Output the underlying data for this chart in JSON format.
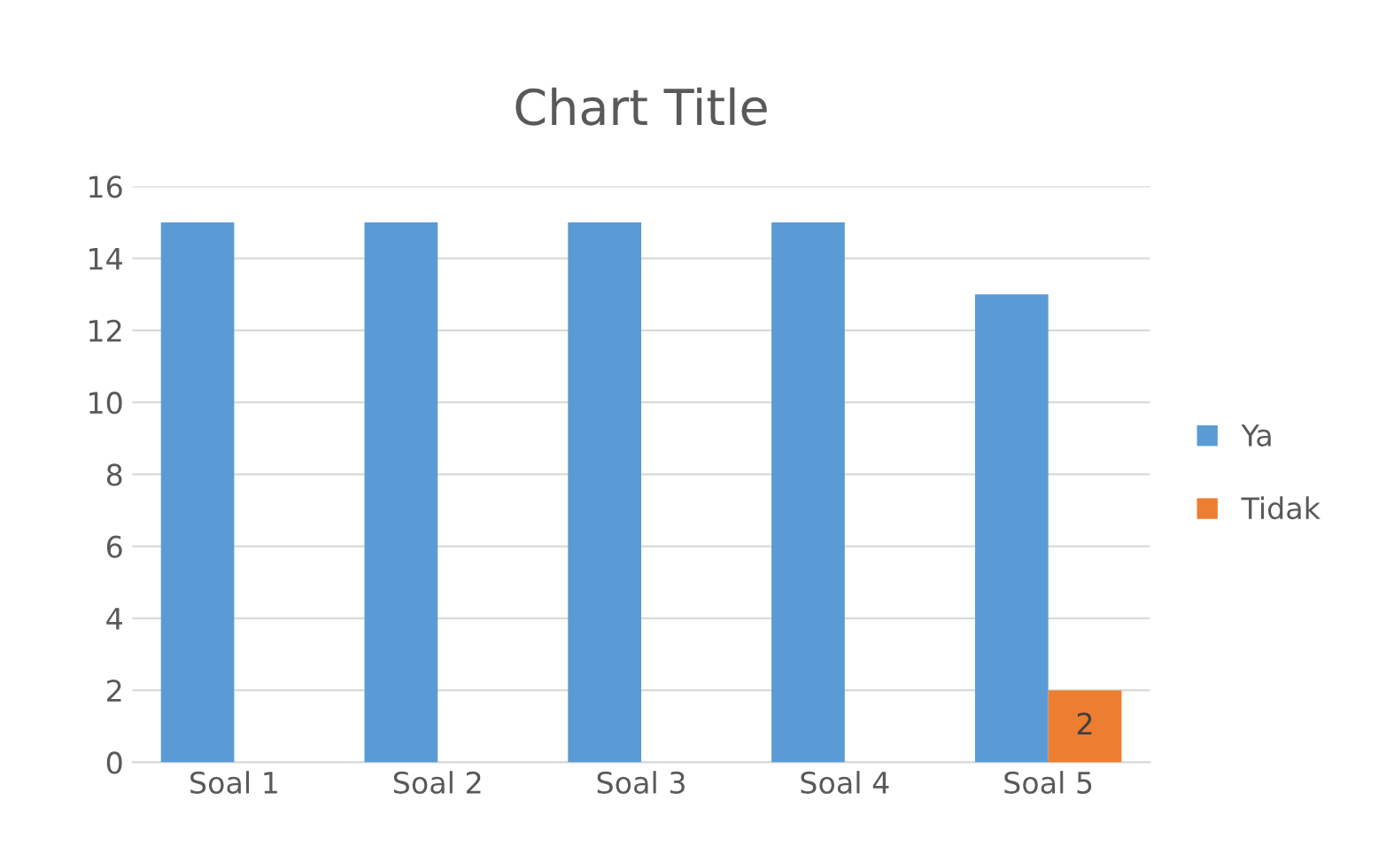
{
  "chart_data": {
    "type": "bar",
    "title": "Chart Title",
    "categories": [
      "Soal 1",
      "Soal 2",
      "Soal 3",
      "Soal 4",
      "Soal 5"
    ],
    "series": [
      {
        "name": "Ya",
        "color": "#5b9bd5",
        "values": [
          15,
          15,
          15,
          15,
          13
        ]
      },
      {
        "name": "Tidak",
        "color": "#ed7d31",
        "values": [
          0,
          0,
          0,
          0,
          2
        ],
        "value_labels": [
          null,
          null,
          null,
          null,
          "2"
        ]
      }
    ],
    "ylim": [
      0,
      16
    ],
    "yticks": [
      0,
      2,
      4,
      6,
      8,
      10,
      12,
      14,
      16
    ],
    "grid": "y",
    "legend": "right"
  }
}
